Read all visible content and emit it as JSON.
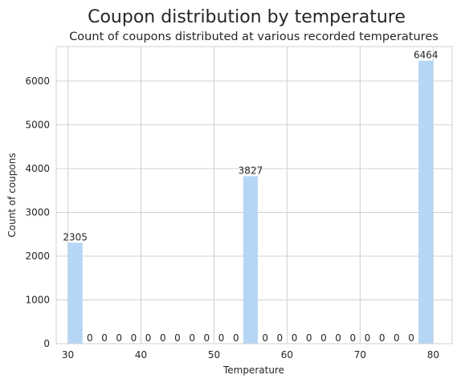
{
  "chart_data": {
    "type": "bar",
    "title": "Coupon distribution by temperature",
    "subtitle": "Count of coupons distributed at various recorded temperatures",
    "xlabel": "Temperature",
    "ylabel": "Count of coupons",
    "xlim": [
      28.4,
      82.6
    ],
    "ylim": [
      0,
      6787.2
    ],
    "xticks": [
      30,
      40,
      50,
      60,
      70,
      80
    ],
    "yticks": [
      0,
      1000,
      2000,
      3000,
      4000,
      5000,
      6000
    ],
    "bin_start": 30,
    "bin_width": 2,
    "values": [
      2305,
      0,
      0,
      0,
      0,
      0,
      0,
      0,
      0,
      0,
      0,
      0,
      3827,
      0,
      0,
      0,
      0,
      0,
      0,
      0,
      0,
      0,
      0,
      0,
      6464
    ],
    "grid": true,
    "bar_color": "#b6d6f5",
    "grid_color": "#d0d0d0",
    "text_color": "#262626"
  }
}
